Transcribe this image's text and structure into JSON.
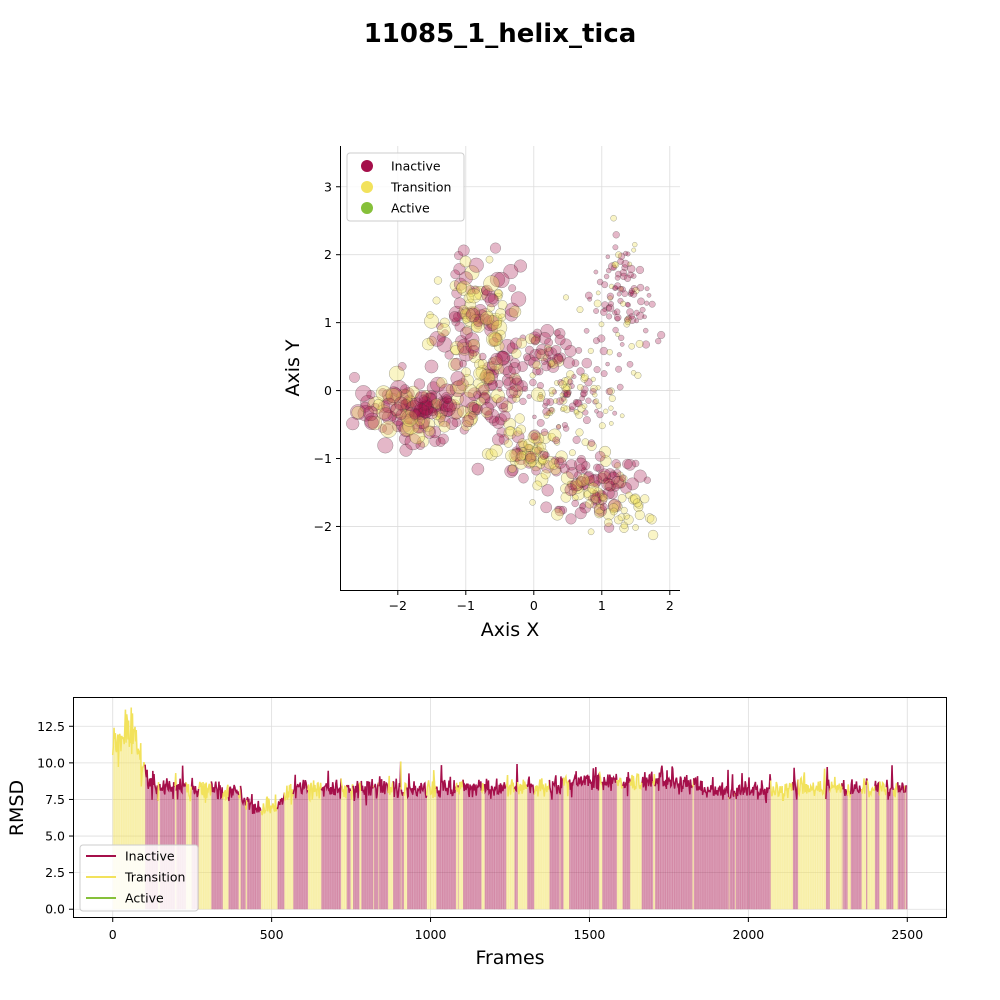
{
  "title": "11085_1_helix_tica",
  "colors": {
    "Inactive": "#a50f4a",
    "Transition": "#f2e25c",
    "Active": "#86c03a"
  },
  "chart_data": [
    {
      "type": "scatter",
      "xlabel": "Axis X",
      "ylabel": "Axis Y",
      "xlim": [
        -2.85,
        2.15
      ],
      "ylim": [
        -2.95,
        3.6
      ],
      "xticks": [
        -2,
        -1,
        0,
        1,
        2
      ],
      "yticks": [
        -2,
        -1,
        0,
        1,
        2,
        3
      ],
      "grid": true,
      "legend": {
        "placement": "upper-left",
        "entries": [
          "Inactive",
          "Transition",
          "Active"
        ]
      },
      "clusters": [
        {
          "cx": -1.75,
          "cy": -0.3,
          "sx": 0.42,
          "sy": 0.22,
          "n": 140,
          "pInactive": 0.68,
          "size": [
            6,
            15
          ]
        },
        {
          "cx": -0.85,
          "cy": 1.05,
          "sx": 0.32,
          "sy": 0.45,
          "n": 130,
          "pInactive": 0.58,
          "size": [
            5,
            14
          ]
        },
        {
          "cx": -0.65,
          "cy": 0.05,
          "sx": 0.3,
          "sy": 0.3,
          "n": 80,
          "pInactive": 0.6,
          "size": [
            5,
            13
          ]
        },
        {
          "cx": -0.1,
          "cy": -0.95,
          "sx": 0.25,
          "sy": 0.2,
          "n": 70,
          "pInactive": 0.3,
          "size": [
            5,
            11
          ]
        },
        {
          "cx": 0.85,
          "cy": -1.35,
          "sx": 0.35,
          "sy": 0.25,
          "n": 110,
          "pInactive": 0.6,
          "size": [
            4,
            11
          ]
        },
        {
          "cx": 1.35,
          "cy": -1.8,
          "sx": 0.2,
          "sy": 0.15,
          "n": 30,
          "pInactive": 0.25,
          "size": [
            4,
            8
          ]
        },
        {
          "cx": 0.55,
          "cy": -0.1,
          "sx": 0.35,
          "sy": 0.3,
          "n": 110,
          "pInactive": 0.5,
          "size": [
            2,
            6
          ]
        },
        {
          "cx": 1.3,
          "cy": 1.3,
          "sx": 0.22,
          "sy": 0.45,
          "n": 110,
          "pInactive": 0.75,
          "size": [
            2,
            6
          ]
        },
        {
          "cx": 0.1,
          "cy": 0.55,
          "sx": 0.25,
          "sy": 0.2,
          "n": 50,
          "pInactive": 0.7,
          "size": [
            4,
            10
          ]
        }
      ]
    },
    {
      "type": "line",
      "xlabel": "Frames",
      "ylabel": "RMSD",
      "xlim": [
        -125,
        2625
      ],
      "ylim": [
        -0.6,
        14.5
      ],
      "xticks": [
        0,
        500,
        1000,
        1500,
        2000,
        2500
      ],
      "yticks": [
        "0.0",
        "2.5",
        "5.0",
        "7.5",
        "10.0",
        "12.5"
      ],
      "grid": true,
      "legend": {
        "placement": "lower-left",
        "entries": [
          "Inactive",
          "Transition",
          "Active"
        ]
      },
      "n_frames": 2500,
      "trend": [
        [
          0,
          11.2
        ],
        [
          40,
          12.3
        ],
        [
          100,
          10.0
        ],
        [
          110,
          8.4
        ],
        [
          300,
          8.1
        ],
        [
          400,
          7.8
        ],
        [
          450,
          6.9
        ],
        [
          520,
          6.7
        ],
        [
          560,
          8.2
        ],
        [
          1000,
          8.3
        ],
        [
          1380,
          8.3
        ],
        [
          1420,
          8.7
        ],
        [
          1800,
          8.6
        ],
        [
          1860,
          8.1
        ],
        [
          2200,
          8.2
        ],
        [
          2500,
          8.4
        ]
      ]
    }
  ]
}
